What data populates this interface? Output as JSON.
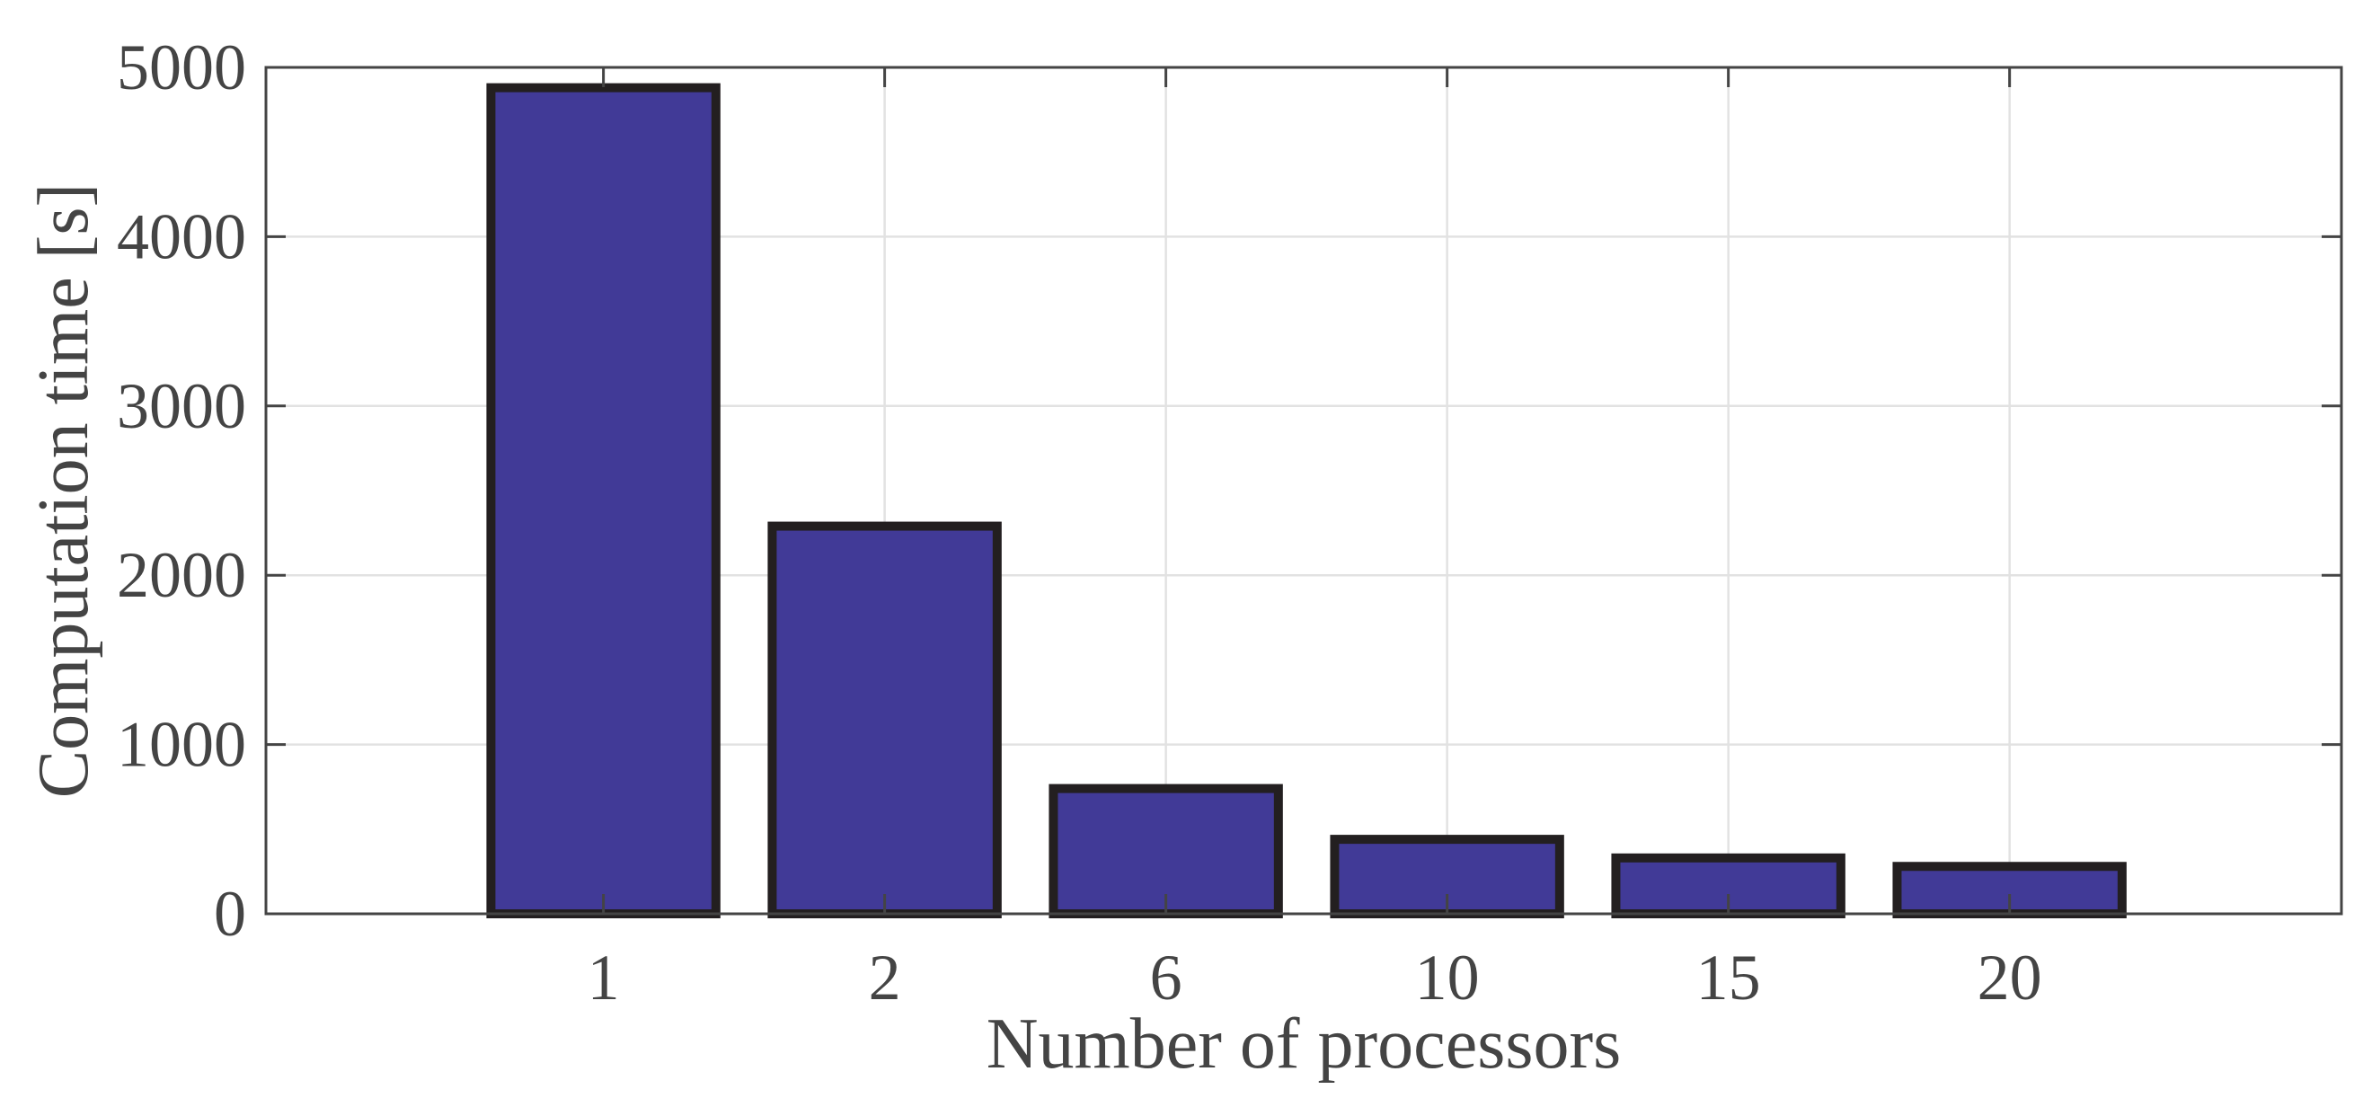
{
  "chart_data": {
    "type": "bar",
    "title": "",
    "xlabel": "Number of processors",
    "ylabel": "Computation time [s]",
    "categories": [
      "1",
      "2",
      "6",
      "10",
      "15",
      "20"
    ],
    "values": [
      4880,
      2290,
      740,
      440,
      330,
      280
    ],
    "ylim": [
      0,
      5000
    ],
    "yticks": [
      0,
      1000,
      2000,
      3000,
      4000,
      5000
    ],
    "ytick_labels": [
      "0",
      "1000",
      "2000",
      "3000",
      "4000",
      "5000"
    ],
    "grid": true,
    "legend": "none",
    "colors": {
      "bar_fill": "#413A97",
      "bar_edge": "#231F20",
      "axis": "#444444",
      "grid": "#E2E2E2",
      "text": "#444444"
    }
  }
}
